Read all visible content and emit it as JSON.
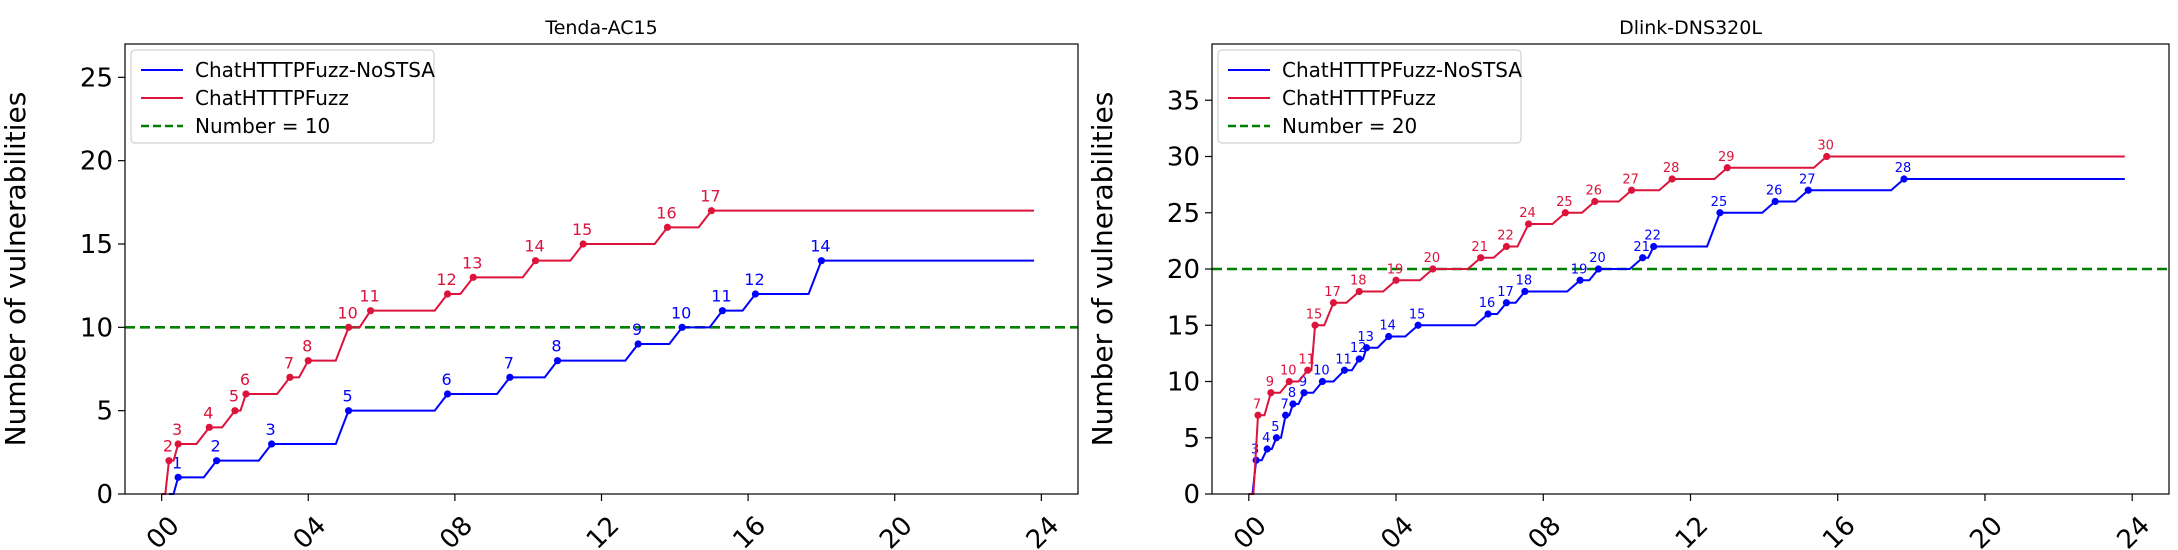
{
  "chart_data": [
    {
      "type": "line",
      "title": "Tenda-AC15",
      "xlabel": "",
      "ylabel": "Number of vulnerabilities",
      "xlim": [
        -1,
        25
      ],
      "ylim": [
        0,
        27
      ],
      "xticks": [
        0,
        4,
        8,
        12,
        16,
        20,
        24
      ],
      "xtick_labels": [
        "00",
        "04",
        "08",
        "12",
        "16",
        "20",
        "24"
      ],
      "yticks": [
        0,
        5,
        10,
        15,
        20,
        25
      ],
      "ytick_labels": [
        "0",
        "5",
        "10",
        "15",
        "20",
        "25"
      ],
      "grid": false,
      "legend_position": "top-left",
      "legend": [
        "ChatHTTTPFuzz-NoSTSA",
        "ChatHTTTPFuzz",
        "Number = 10"
      ],
      "threshold": {
        "name": "Number = 10",
        "value": 10,
        "color": "#008000",
        "style": "dashed"
      },
      "series": [
        {
          "name": "ChatHTTTPFuzz-NoSTSA",
          "color": "#0000ff",
          "end_x": 23.8,
          "points": [
            [
              0.2,
              0
            ],
            [
              0.45,
              1
            ],
            [
              1.5,
              2
            ],
            [
              3.0,
              3
            ],
            [
              5.1,
              5
            ],
            [
              7.8,
              6
            ],
            [
              9.5,
              7
            ],
            [
              10.8,
              8
            ],
            [
              13.0,
              9
            ],
            [
              14.2,
              10
            ],
            [
              15.3,
              11
            ],
            [
              16.2,
              12
            ],
            [
              18.0,
              14
            ]
          ],
          "labels": [
            "",
            "1",
            "2",
            "3",
            "5",
            "6",
            "7",
            "8",
            "9",
            "10",
            "11",
            "12",
            "14"
          ]
        },
        {
          "name": "ChatHTTTPFuzz",
          "color": "#dc143c",
          "end_x": 23.8,
          "points": [
            [
              0.0,
              0
            ],
            [
              0.2,
              2
            ],
            [
              0.45,
              3
            ],
            [
              1.3,
              4
            ],
            [
              2.0,
              5
            ],
            [
              2.3,
              6
            ],
            [
              3.5,
              7
            ],
            [
              4.0,
              8
            ],
            [
              5.1,
              10
            ],
            [
              5.7,
              11
            ],
            [
              7.8,
              12
            ],
            [
              8.5,
              13
            ],
            [
              10.2,
              14
            ],
            [
              11.5,
              15
            ],
            [
              13.8,
              16
            ],
            [
              15.0,
              17
            ]
          ],
          "labels": [
            "",
            "2",
            "3",
            "4",
            "5",
            "6",
            "7",
            "8",
            "10",
            "11",
            "12",
            "13",
            "14",
            "15",
            "16",
            "17"
          ]
        }
      ]
    },
    {
      "type": "line",
      "title": "Dlink-DNS320L",
      "xlabel": "",
      "ylabel": "Number of vulnerabilities",
      "xlim": [
        -1,
        25
      ],
      "ylim": [
        0,
        40
      ],
      "xticks": [
        0,
        4,
        8,
        12,
        16,
        20,
        24
      ],
      "xtick_labels": [
        "00",
        "04",
        "08",
        "12",
        "16",
        "20",
        "24"
      ],
      "yticks": [
        0,
        5,
        10,
        15,
        20,
        25,
        30,
        35
      ],
      "ytick_labels": [
        "0",
        "5",
        "10",
        "15",
        "20",
        "25",
        "30",
        "35"
      ],
      "grid": false,
      "legend_position": "top-left",
      "legend": [
        "ChatHTTTPFuzz-NoSTSA",
        "ChatHTTTPFuzz",
        "Number = 20"
      ],
      "threshold": {
        "name": "Number = 20",
        "value": 20,
        "color": "#008000",
        "style": "dashed"
      },
      "series": [
        {
          "name": "ChatHTTTPFuzz-NoSTSA",
          "color": "#0000ff",
          "end_x": 23.8,
          "points": [
            [
              0.0,
              0
            ],
            [
              0.2,
              3
            ],
            [
              0.5,
              4
            ],
            [
              0.75,
              5
            ],
            [
              1.0,
              7
            ],
            [
              1.2,
              8
            ],
            [
              1.5,
              9
            ],
            [
              2.0,
              10
            ],
            [
              2.6,
              11
            ],
            [
              3.0,
              12
            ],
            [
              3.2,
              13
            ],
            [
              3.8,
              14
            ],
            [
              4.6,
              15
            ],
            [
              6.5,
              16
            ],
            [
              7.0,
              17
            ],
            [
              7.5,
              18
            ],
            [
              9.0,
              19
            ],
            [
              9.5,
              20
            ],
            [
              10.7,
              21
            ],
            [
              11.0,
              22
            ],
            [
              12.8,
              25
            ],
            [
              14.3,
              26
            ],
            [
              15.2,
              27
            ],
            [
              17.8,
              28
            ]
          ],
          "labels": [
            "",
            "3",
            "4",
            "5",
            "7",
            "8",
            "9",
            "10",
            "11",
            "12",
            "13",
            "14",
            "15",
            "16",
            "17",
            "18",
            "19",
            "20",
            "21",
            "22",
            "25",
            "26",
            "27",
            "28"
          ]
        },
        {
          "name": "ChatHTTTPFuzz",
          "color": "#dc143c",
          "end_x": 23.8,
          "points": [
            [
              0.0,
              0
            ],
            [
              0.25,
              7
            ],
            [
              0.6,
              9
            ],
            [
              1.1,
              10
            ],
            [
              1.6,
              11
            ],
            [
              1.8,
              15
            ],
            [
              2.3,
              17
            ],
            [
              3.0,
              18
            ],
            [
              4.0,
              19
            ],
            [
              5.0,
              20
            ],
            [
              6.3,
              21
            ],
            [
              7.0,
              22
            ],
            [
              7.6,
              24
            ],
            [
              8.6,
              25
            ],
            [
              9.4,
              26
            ],
            [
              10.4,
              27
            ],
            [
              11.5,
              28
            ],
            [
              13.0,
              29
            ],
            [
              15.7,
              30
            ]
          ],
          "labels": [
            "",
            "7",
            "9",
            "10",
            "11",
            "15",
            "17",
            "18",
            "19",
            "20",
            "21",
            "22",
            "24",
            "25",
            "26",
            "27",
            "28",
            "29",
            "30"
          ]
        }
      ]
    }
  ]
}
